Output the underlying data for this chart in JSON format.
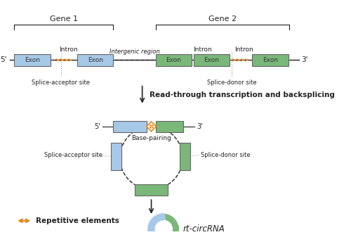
{
  "bg_color": "#ffffff",
  "exon_blue": "#a8c8e8",
  "exon_green": "#7ab87a",
  "arrow_orange": "#e8851a",
  "line_color": "#222222",
  "dashed_color": "#999999",
  "circle_light": "#b8ddf0",
  "gene1_label": "Gene 1",
  "gene2_label": "Gene 2",
  "intergenic_label": "Intergenic region",
  "splice_acceptor": "Splice-acceptor site",
  "splice_donor": "Splice-donor site",
  "base_pairing": "Base-pairing",
  "read_through": "Read-through transcription and backsplicing",
  "repetitive": "Repetitive elements",
  "rt_circrna": "rt-circRNA",
  "five_prime": "5'",
  "three_prime": "3'"
}
